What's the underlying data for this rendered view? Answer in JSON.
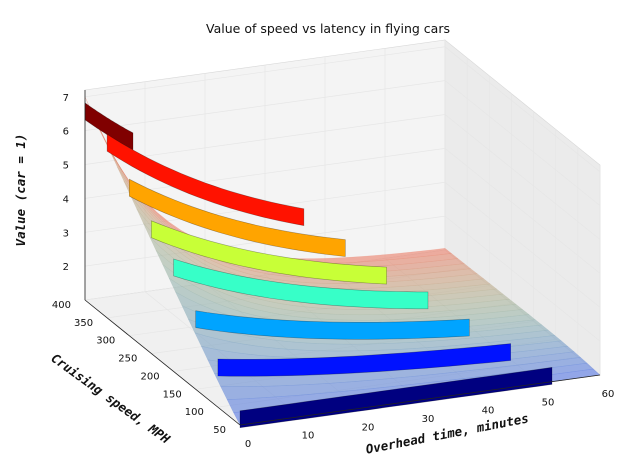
{
  "chart_data": {
    "type": "surface3d",
    "title": "Value of speed vs latency in flying cars",
    "xlabel": "Overhead time, minutes",
    "ylabel": "Cruising speed, MPH",
    "zlabel": "Value (car = 1)",
    "xlim": [
      0,
      60
    ],
    "ylim": [
      50,
      400
    ],
    "zlim": [
      1,
      7
    ],
    "xticks": [
      0,
      10,
      20,
      30,
      40,
      50,
      60
    ],
    "yticks": [
      50,
      100,
      150,
      200,
      250,
      300,
      350,
      400
    ],
    "zticks": [
      2,
      3,
      4,
      5,
      6,
      7
    ],
    "grid": true,
    "colormap": "jet",
    "surface_colormap": "coolwarm",
    "speed_bands_mph": [
      50,
      100,
      150,
      200,
      250,
      300,
      350,
      400
    ],
    "band_peak_values": [
      1.0,
      2.0,
      2.9,
      3.9,
      4.5,
      5.2,
      6.0,
      6.4
    ],
    "surface_peak_value": 7.0
  }
}
